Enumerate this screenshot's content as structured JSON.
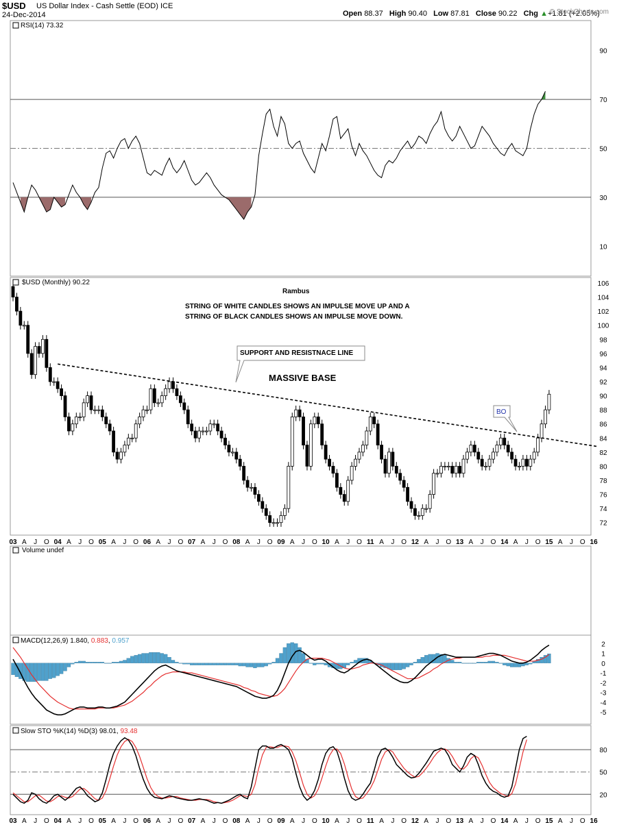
{
  "header": {
    "symbol": "$USD",
    "description": "US Dollar Index - Cash Settle (EOD)  ICE",
    "date": "24-Dec-2014",
    "open_label": "Open",
    "open": "88.37",
    "high_label": "High",
    "high": "90.40",
    "low_label": "Low",
    "low": "87.81",
    "close_label": "Close",
    "close": "90.22",
    "chg_label": "Chg",
    "chg": "+1.81 (+2.05%)",
    "chg_arrow": "▲",
    "brand": "© StockCharts.com"
  },
  "colors": {
    "up": "#2a8f2a",
    "rsi_fill_low": "#9b6b6b",
    "rsi_fill_high": "#3f8f3f",
    "hist": "#4fa1cc",
    "signal": "#e53030",
    "note_blue": "#2233aa"
  },
  "chart_data": [
    {
      "type": "line",
      "panel": "rsi",
      "title": "RSI(14) 73.32",
      "ylim": [
        0,
        100
      ],
      "y_ticks": [
        10,
        30,
        50,
        70,
        90
      ],
      "ref_lines": [
        30,
        50,
        70
      ],
      "x_start": "2003-01",
      "interval": "monthly",
      "values": [
        36,
        32,
        28,
        24,
        30,
        35,
        33,
        30,
        27,
        24,
        25,
        30,
        28,
        26,
        27,
        31,
        35,
        32,
        30,
        27,
        25,
        28,
        32,
        34,
        42,
        48,
        49,
        46,
        50,
        53,
        54,
        50,
        53,
        55,
        52,
        46,
        40,
        39,
        41,
        40,
        39,
        43,
        46,
        42,
        40,
        42,
        45,
        41,
        37,
        35,
        36,
        38,
        40,
        38,
        35,
        33,
        31,
        30,
        29,
        27,
        25,
        23,
        21,
        24,
        26,
        31,
        47,
        56,
        64,
        66,
        59,
        55,
        63,
        60,
        52,
        50,
        52,
        53,
        48,
        45,
        42,
        40,
        46,
        52,
        49,
        55,
        62,
        63,
        54,
        56,
        58,
        51,
        47,
        52,
        49,
        47,
        44,
        41,
        39,
        38,
        43,
        45,
        44,
        46,
        49,
        51,
        53,
        50,
        52,
        55,
        54,
        52,
        56,
        59,
        61,
        65,
        58,
        55,
        53,
        55,
        59,
        56,
        53,
        50,
        51,
        55,
        59,
        57,
        55,
        52,
        50,
        48,
        47,
        50,
        52,
        49,
        48,
        47,
        50,
        58,
        64,
        68,
        70,
        73.32
      ]
    },
    {
      "type": "bar",
      "panel": "price",
      "title": "$USD (Monthly) 90.22",
      "ylim": [
        71,
        106
      ],
      "y_ticks": [
        72,
        74,
        76,
        78,
        80,
        82,
        84,
        86,
        88,
        90,
        92,
        94,
        96,
        98,
        100,
        102,
        104,
        106
      ],
      "x_start": "2003-01",
      "interval": "monthly",
      "closes": [
        104,
        102,
        100,
        100,
        96,
        93,
        97,
        96,
        98,
        94,
        92,
        92,
        91,
        90,
        87,
        85,
        86,
        87,
        87,
        89,
        90,
        88,
        88,
        88,
        87,
        86,
        85,
        82,
        81,
        82,
        83,
        84,
        84,
        86,
        87,
        88,
        88,
        91,
        89,
        89,
        90,
        91,
        92,
        91,
        90,
        89,
        88,
        86,
        85,
        84,
        85,
        85,
        85,
        86,
        86,
        85,
        84,
        83,
        82,
        82,
        81,
        80,
        78,
        77,
        77,
        76,
        75,
        74,
        73,
        72,
        72,
        72,
        73,
        74,
        80,
        87,
        88,
        87,
        83,
        80,
        86,
        87,
        86,
        83,
        81,
        80,
        79,
        77,
        76,
        75,
        78,
        80,
        81,
        82,
        83,
        85,
        87,
        86,
        83,
        81,
        79,
        82,
        80,
        79,
        78,
        77,
        75,
        74,
        73,
        73,
        74,
        74,
        76,
        79,
        79,
        80,
        80,
        80,
        79,
        80,
        79,
        81,
        82,
        83,
        82,
        81,
        80,
        80,
        81,
        82,
        83,
        84,
        83,
        82,
        81,
        80,
        80,
        81,
        80,
        81,
        82,
        84,
        86,
        88,
        90.22
      ],
      "annotations": [
        {
          "label": "Rambus"
        },
        {
          "label": "STRING OF WHITE CANDLES SHOWS AN IMPULSE MOVE UP AND A"
        },
        {
          "label": "STRING OF BLACK CANDLES SHOWS AN IMPULSE MOVE DOWN."
        },
        {
          "label": "SUPPORT AND RESISTNACE LINE"
        },
        {
          "label": "MASSIVE BASE"
        },
        {
          "label": "BO"
        }
      ],
      "trendline": {
        "from": [
          "2004-01",
          94.5
        ],
        "to": [
          "2016-02",
          82.8
        ]
      }
    },
    {
      "type": "line",
      "panel": "volume",
      "title": "Volume undef",
      "values": []
    },
    {
      "type": "area",
      "panel": "macd",
      "title": "MACD(12,26,9) 1.840, 0.883, 0.957",
      "title_parts": [
        "MACD(12,26,9) 1.840, ",
        "0.883",
        ", ",
        "0.957"
      ],
      "ylim": [
        -5.7,
        2.3
      ],
      "y_ticks": [
        -5,
        -4,
        -3,
        -2,
        -1,
        0,
        1,
        2
      ],
      "x_start": "2003-01",
      "interval": "monthly",
      "series": [
        {
          "name": "MACD",
          "values": [
            0.4,
            -0.3,
            -1.0,
            -1.8,
            -2.5,
            -3.1,
            -3.6,
            -4.0,
            -4.4,
            -4.8,
            -5.0,
            -5.2,
            -5.3,
            -5.3,
            -5.2,
            -5.0,
            -4.8,
            -4.6,
            -4.5,
            -4.5,
            -4.6,
            -4.6,
            -4.6,
            -4.5,
            -4.5,
            -4.6,
            -4.6,
            -4.5,
            -4.4,
            -4.2,
            -4.0,
            -3.6,
            -3.2,
            -2.8,
            -2.4,
            -2.0,
            -1.6,
            -1.2,
            -0.8,
            -0.5,
            -0.3,
            -0.2,
            -0.4,
            -0.6,
            -0.8,
            -0.9,
            -1.0,
            -1.1,
            -1.2,
            -1.3,
            -1.4,
            -1.5,
            -1.6,
            -1.7,
            -1.8,
            -1.9,
            -2.0,
            -2.1,
            -2.2,
            -2.3,
            -2.4,
            -2.6,
            -2.8,
            -3.0,
            -3.2,
            -3.4,
            -3.5,
            -3.6,
            -3.6,
            -3.5,
            -3.3,
            -2.8,
            -2.0,
            -1.0,
            0.0,
            0.7,
            1.2,
            1.3,
            1.1,
            0.8,
            0.5,
            0.3,
            0.4,
            0.4,
            0.2,
            -0.1,
            -0.4,
            -0.7,
            -0.9,
            -1.0,
            -0.8,
            -0.5,
            -0.2,
            0.1,
            0.3,
            0.4,
            0.3,
            0.0,
            -0.3,
            -0.6,
            -0.9,
            -1.2,
            -1.5,
            -1.7,
            -1.9,
            -2.0,
            -2.0,
            -1.8,
            -1.5,
            -1.1,
            -0.7,
            -0.3,
            0.0,
            0.3,
            0.6,
            0.8,
            0.9,
            0.8,
            0.7,
            0.6,
            0.6,
            0.6,
            0.6,
            0.6,
            0.6,
            0.7,
            0.8,
            0.9,
            1.0,
            1.0,
            0.9,
            0.8,
            0.6,
            0.4,
            0.2,
            0.1,
            0.0,
            0.0,
            0.1,
            0.3,
            0.6,
            0.9,
            1.3,
            1.6,
            1.84
          ]
        },
        {
          "name": "Signal",
          "values": [
            1.6,
            1.1,
            0.6,
            0.0,
            -0.6,
            -1.2,
            -1.7,
            -2.2,
            -2.6,
            -3.0,
            -3.4,
            -3.7,
            -4.0,
            -4.2,
            -4.4,
            -4.6,
            -4.7,
            -4.7,
            -4.7,
            -4.7,
            -4.7,
            -4.7,
            -4.7,
            -4.6,
            -4.6,
            -4.6,
            -4.6,
            -4.6,
            -4.5,
            -4.4,
            -4.3,
            -4.1,
            -3.9,
            -3.6,
            -3.3,
            -3.0,
            -2.6,
            -2.3,
            -1.9,
            -1.6,
            -1.3,
            -1.1,
            -1.0,
            -0.9,
            -0.9,
            -0.9,
            -0.9,
            -1.0,
            -1.0,
            -1.1,
            -1.2,
            -1.3,
            -1.4,
            -1.5,
            -1.6,
            -1.7,
            -1.8,
            -1.9,
            -2.0,
            -2.1,
            -2.2,
            -2.3,
            -2.5,
            -2.6,
            -2.8,
            -2.9,
            -3.1,
            -3.2,
            -3.3,
            -3.4,
            -3.4,
            -3.3,
            -3.0,
            -2.6,
            -2.0,
            -1.4,
            -0.8,
            -0.3,
            0.1,
            0.4,
            0.5,
            0.5,
            0.5,
            0.5,
            0.4,
            0.3,
            0.1,
            -0.1,
            -0.3,
            -0.5,
            -0.6,
            -0.6,
            -0.5,
            -0.4,
            -0.2,
            -0.1,
            0.0,
            0.0,
            -0.1,
            -0.2,
            -0.4,
            -0.6,
            -0.8,
            -1.0,
            -1.2,
            -1.4,
            -1.6,
            -1.6,
            -1.6,
            -1.5,
            -1.3,
            -1.1,
            -0.9,
            -0.6,
            -0.4,
            -0.1,
            0.1,
            0.3,
            0.4,
            0.5,
            0.5,
            0.6,
            0.6,
            0.6,
            0.6,
            0.6,
            0.6,
            0.7,
            0.7,
            0.8,
            0.8,
            0.8,
            0.8,
            0.7,
            0.6,
            0.5,
            0.4,
            0.3,
            0.2,
            0.2,
            0.2,
            0.3,
            0.4,
            0.6,
            0.88
          ]
        },
        {
          "name": "Histogram",
          "values": [
            -1.2,
            -1.4,
            -1.6,
            -1.8,
            -1.9,
            -1.9,
            -1.9,
            -1.8,
            -1.8,
            -1.8,
            -1.6,
            -1.5,
            -1.3,
            -1.1,
            -0.8,
            -0.4,
            -0.1,
            0.1,
            0.2,
            0.2,
            0.1,
            0.1,
            0.1,
            0.1,
            0.1,
            0.0,
            0.0,
            0.1,
            0.1,
            0.2,
            0.3,
            0.5,
            0.7,
            0.8,
            0.9,
            1.0,
            1.0,
            1.1,
            1.1,
            1.1,
            1.0,
            0.9,
            0.6,
            0.3,
            0.1,
            0.0,
            -0.1,
            -0.1,
            -0.2,
            -0.2,
            -0.2,
            -0.2,
            -0.2,
            -0.2,
            -0.2,
            -0.2,
            -0.2,
            -0.2,
            -0.2,
            -0.2,
            -0.2,
            -0.3,
            -0.3,
            -0.4,
            -0.4,
            -0.5,
            -0.4,
            -0.4,
            -0.3,
            -0.1,
            0.1,
            0.5,
            1.0,
            1.6,
            2.0,
            2.1,
            2.0,
            1.6,
            1.0,
            0.4,
            0.0,
            -0.2,
            -0.1,
            -0.1,
            -0.2,
            -0.4,
            -0.5,
            -0.6,
            -0.6,
            -0.5,
            -0.2,
            0.1,
            0.3,
            0.5,
            0.5,
            0.5,
            0.3,
            0.0,
            -0.2,
            -0.4,
            -0.5,
            -0.6,
            -0.7,
            -0.7,
            -0.7,
            -0.6,
            -0.4,
            -0.2,
            0.1,
            0.4,
            0.6,
            0.8,
            0.9,
            0.9,
            1.0,
            0.9,
            0.8,
            0.5,
            0.3,
            0.1,
            0.1,
            0.0,
            0.0,
            0.0,
            0.0,
            0.1,
            0.1,
            0.1,
            0.2,
            0.2,
            0.1,
            0.0,
            -0.2,
            -0.3,
            -0.4,
            -0.4,
            -0.4,
            -0.3,
            -0.2,
            -0.1,
            0.2,
            0.4,
            0.6,
            0.8,
            0.957
          ]
        }
      ]
    },
    {
      "type": "line",
      "panel": "stochastic",
      "title": "Slow STO %K(14) %D(3) 98.01, 93.48",
      "title_parts": [
        "Slow STO %K(14) %D(3) 98.01, ",
        "93.48"
      ],
      "ylim": [
        0,
        105
      ],
      "y_ticks": [
        20,
        50,
        80
      ],
      "ref_lines": [
        20,
        50,
        80
      ],
      "x_start": "2003-01",
      "interval": "monthly",
      "series": [
        {
          "name": "%K",
          "values": [
            20,
            15,
            10,
            8,
            12,
            22,
            20,
            14,
            10,
            8,
            12,
            18,
            20,
            16,
            12,
            16,
            22,
            28,
            30,
            25,
            18,
            14,
            10,
            12,
            22,
            40,
            60,
            75,
            85,
            92,
            96,
            93,
            85,
            72,
            55,
            40,
            28,
            20,
            16,
            15,
            14,
            16,
            18,
            17,
            15,
            14,
            13,
            12,
            12,
            13,
            14,
            13,
            12,
            10,
            8,
            9,
            8,
            10,
            12,
            15,
            18,
            20,
            16,
            14,
            30,
            55,
            80,
            85,
            85,
            82,
            82,
            85,
            87,
            84,
            80,
            68,
            48,
            30,
            18,
            12,
            16,
            25,
            40,
            60,
            75,
            82,
            84,
            78,
            62,
            42,
            25,
            15,
            12,
            14,
            20,
            28,
            35,
            52,
            70,
            80,
            82,
            78,
            70,
            60,
            55,
            50,
            45,
            42,
            43,
            48,
            55,
            62,
            70,
            78,
            80,
            82,
            80,
            72,
            60,
            55,
            50,
            58,
            70,
            75,
            72,
            60,
            45,
            35,
            28,
            24,
            22,
            18,
            16,
            18,
            30,
            55,
            80,
            95,
            98.01
          ]
        },
        {
          "name": "%D",
          "values": [
            22,
            18,
            14,
            10,
            10,
            14,
            18,
            19,
            15,
            11,
            10,
            13,
            17,
            18,
            16,
            15,
            17,
            22,
            27,
            28,
            24,
            19,
            14,
            12,
            15,
            25,
            41,
            58,
            73,
            84,
            91,
            94,
            91,
            83,
            71,
            56,
            41,
            29,
            21,
            17,
            15,
            15,
            16,
            17,
            17,
            15,
            14,
            13,
            12,
            12,
            13,
            13,
            13,
            12,
            10,
            9,
            8,
            9,
            10,
            12,
            15,
            18,
            18,
            17,
            20,
            33,
            55,
            73,
            83,
            84,
            83,
            83,
            85,
            85,
            84,
            77,
            65,
            49,
            32,
            20,
            15,
            18,
            27,
            42,
            58,
            72,
            80,
            81,
            75,
            61,
            43,
            27,
            17,
            14,
            15,
            21,
            28,
            38,
            52,
            67,
            77,
            80,
            77,
            69,
            62,
            55,
            50,
            46,
            43,
            44,
            49,
            55,
            62,
            70,
            76,
            80,
            81,
            78,
            71,
            62,
            55,
            54,
            59,
            68,
            72,
            69,
            59,
            47,
            36,
            29,
            25,
            21,
            19,
            17,
            21,
            34,
            55,
            77,
            93.48
          ]
        }
      ]
    }
  ],
  "x_axis": {
    "labels": [
      "03",
      "A",
      "J",
      "O",
      "04",
      "A",
      "J",
      "O",
      "05",
      "A",
      "J",
      "O",
      "06",
      "A",
      "J",
      "O",
      "07",
      "A",
      "J",
      "O",
      "08",
      "A",
      "J",
      "O",
      "09",
      "A",
      "J",
      "O",
      "10",
      "A",
      "J",
      "O",
      "11",
      "A",
      "J",
      "O",
      "12",
      "A",
      "J",
      "O",
      "13",
      "A",
      "J",
      "O",
      "14",
      "A",
      "J",
      "O",
      "15",
      "A",
      "J",
      "O",
      "16"
    ],
    "year_labels": [
      "03",
      "04",
      "05",
      "06",
      "07",
      "08",
      "09",
      "10",
      "11",
      "12",
      "13",
      "14",
      "15",
      "16"
    ]
  }
}
